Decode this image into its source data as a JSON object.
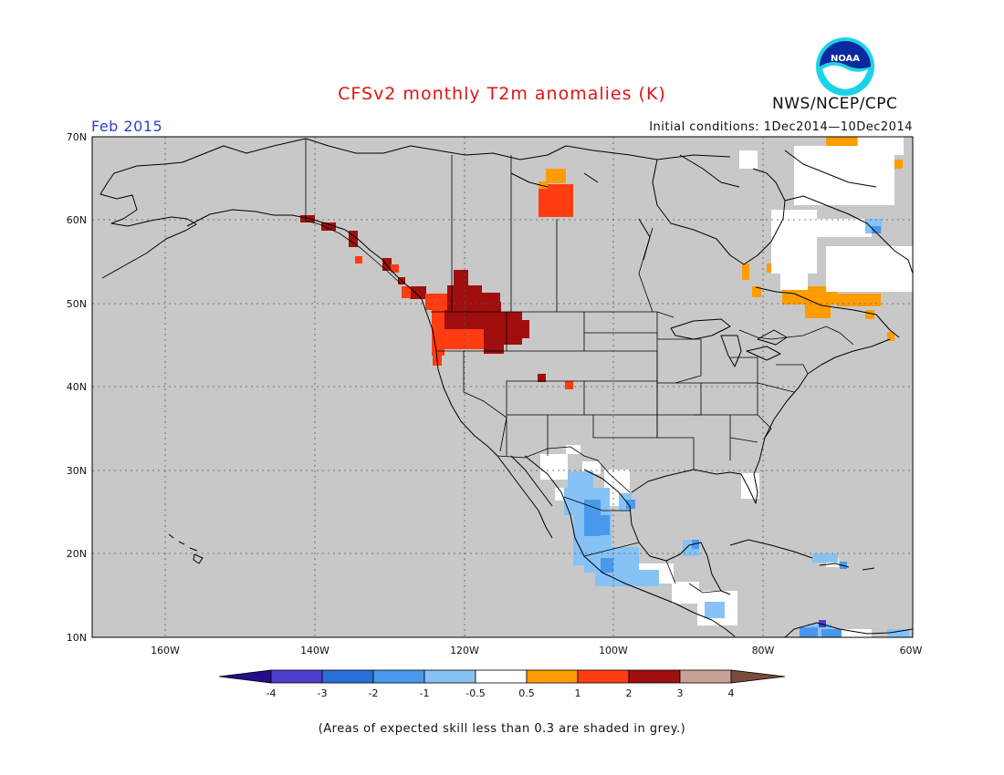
{
  "header": {
    "title": "CFSv2 monthly T2m anomalies (K)",
    "period": "Feb 2015",
    "initial_conditions": "Initial conditions: 1Dec2014—10Dec2014",
    "agency": "NWS/NCEP/CPC",
    "logo": "noaa-logo",
    "logo_text": "NOAA"
  },
  "map": {
    "projection": "lat-lon",
    "lon_range": [
      -172,
      -60
    ],
    "lat_range": [
      10,
      70
    ],
    "lat_ticks": [
      "70N",
      "60N",
      "50N",
      "40N",
      "30N",
      "20N",
      "10N"
    ],
    "lon_ticks": [
      "160W",
      "140W",
      "120W",
      "100W",
      "80W",
      "60W"
    ],
    "background_color": "#c8c8c8",
    "gridlines": "dotted"
  },
  "colorbar": {
    "levels": [
      "-4",
      "-3",
      "-2",
      "-1",
      "-0.5",
      "0.5",
      "1",
      "2",
      "3",
      "4"
    ],
    "colors": [
      "#240c8a",
      "#4f3fcf",
      "#2a6ed8",
      "#4a98ec",
      "#87c2f5",
      "#ffffff",
      "#ff9c00",
      "#ff3c12",
      "#a00e0e",
      "#c8a196",
      "#7a4a3c"
    ]
  },
  "footnote": "(Areas of expected skill less than 0.3 are shaded in grey.)"
}
